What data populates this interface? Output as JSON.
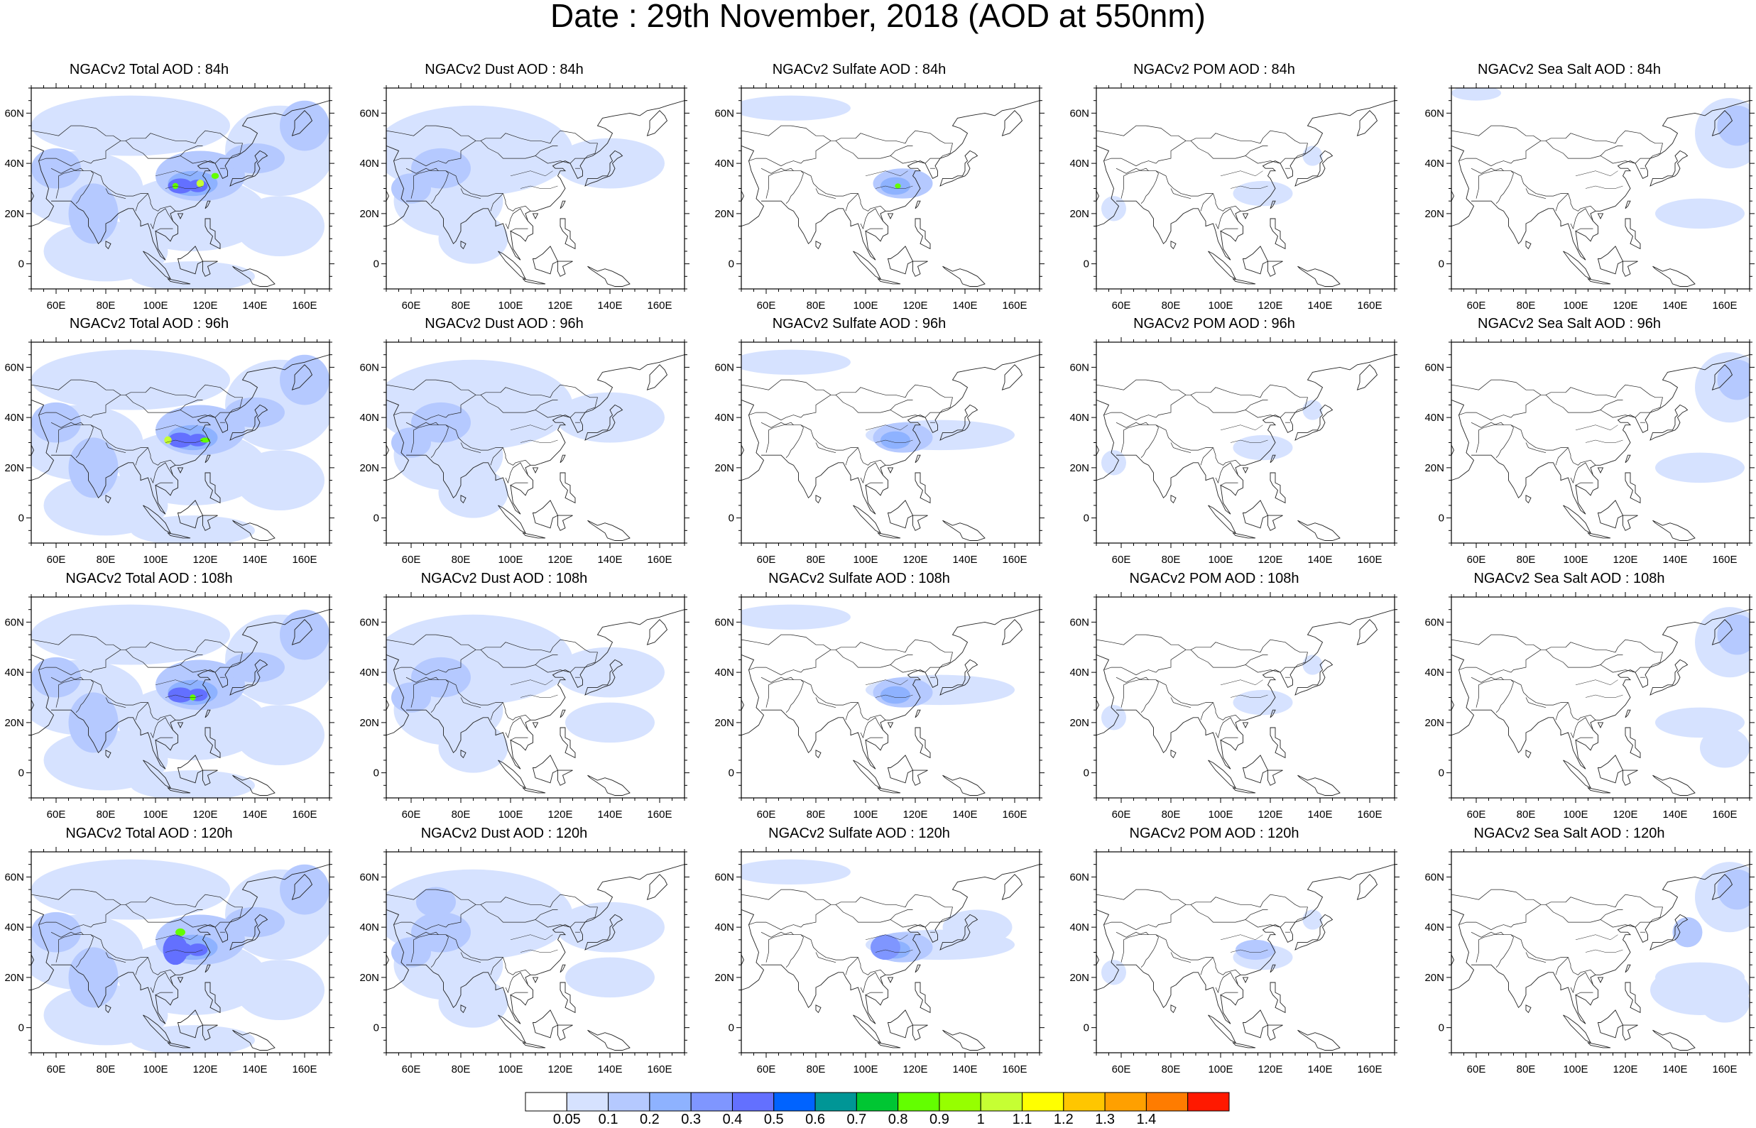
{
  "title": "Date : 29th November, 2018 (AOD at 550nm)",
  "columns": [
    "total",
    "dust",
    "sulfate",
    "pom",
    "seasalt"
  ],
  "rows": [
    "84h",
    "96h",
    "108h",
    "120h"
  ],
  "panels": [
    [
      "NGACv2 Total AOD : 84h",
      "NGACv2 Dust AOD : 84h",
      "NGACv2 Sulfate AOD : 84h",
      "NGACv2 POM AOD : 84h",
      "NGACv2 Sea Salt AOD : 84h"
    ],
    [
      "NGACv2 Total AOD : 96h",
      "NGACv2 Dust AOD : 96h",
      "NGACv2 Sulfate AOD : 96h",
      "NGACv2 POM AOD : 96h",
      "NGACv2 Sea Salt AOD : 96h"
    ],
    [
      "NGACv2 Total AOD : 108h",
      "NGACv2 Dust AOD : 108h",
      "NGACv2 Sulfate AOD : 108h",
      "NGACv2 POM AOD : 108h",
      "NGACv2 Sea Salt AOD : 108h"
    ],
    [
      "NGACv2 Total AOD : 120h",
      "NGACv2 Dust AOD : 120h",
      "NGACv2 Sulfate AOD : 120h",
      "NGACv2 POM AOD : 120h",
      "NGACv2 Sea Salt  AOD : 120h"
    ]
  ],
  "map": {
    "lon_range": [
      50,
      170
    ],
    "lat_range": [
      -10,
      70
    ],
    "lon_ticks": [
      "60E",
      "80E",
      "100E",
      "120E",
      "140E",
      "160E"
    ],
    "lat_ticks": [
      "60N",
      "40N",
      "20N",
      "0"
    ]
  },
  "colorbar": {
    "labels": [
      "0.05",
      "0.1",
      "0.2",
      "0.3",
      "0.4",
      "0.5",
      "0.6",
      "0.7",
      "0.8",
      "0.9",
      "1",
      "1.1",
      "1.2",
      "1.3",
      "1.4"
    ],
    "colors": [
      "#ffffff",
      "#d6e2ff",
      "#b5c9ff",
      "#8eb2ff",
      "#7f96ff",
      "#6370ff",
      "#0063ff",
      "#009696",
      "#00c633",
      "#63ff00",
      "#96ff00",
      "#c6ff33",
      "#ffff00",
      "#ffc600",
      "#ffa000",
      "#ff7c00",
      "#ff1900"
    ]
  }
}
